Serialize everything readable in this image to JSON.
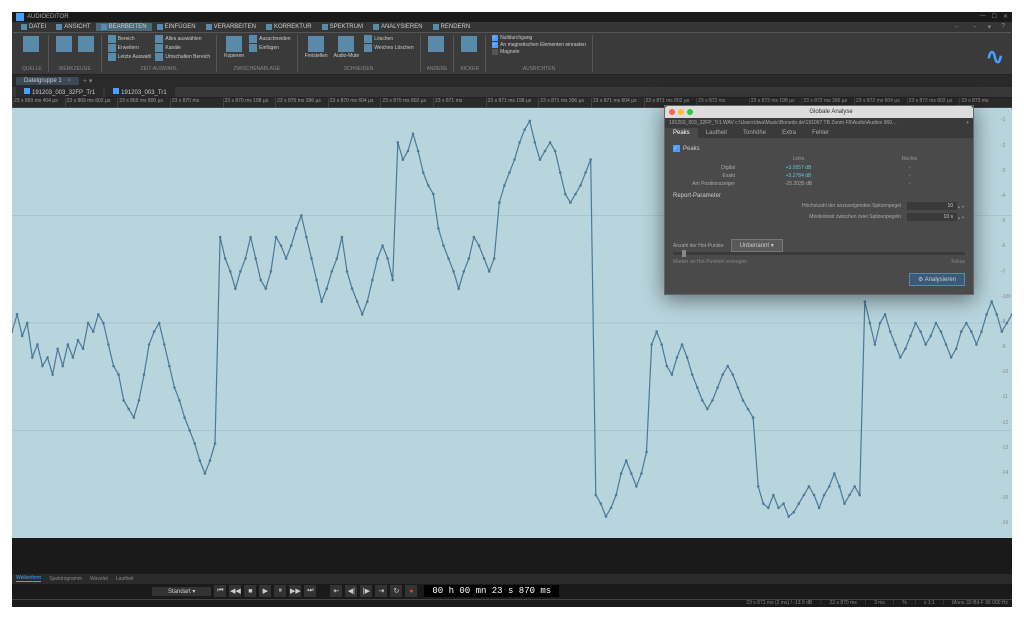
{
  "app_title": "AUDIOEDITOR",
  "menus": [
    "DATEI",
    "ANSICHT",
    "BEARBEITEN",
    "EINFÜGEN",
    "VERARBEITEN",
    "KORREKTUR",
    "SPEKTRUM",
    "ANALYSIEREN",
    "RENDERN"
  ],
  "active_menu_index": 2,
  "ribbon": {
    "groups": [
      {
        "name": "QUELLE",
        "big": [
          {
            "label": ""
          }
        ]
      },
      {
        "name": "WERKZEUGE",
        "big": [
          {
            "label": ""
          },
          {
            "label": ""
          }
        ]
      },
      {
        "name": "ZEIT-AUSWAHL",
        "rows": [
          "Bereich",
          "Erweitern",
          "Letzte Auswahl"
        ],
        "col2": [
          "Alles auswählen",
          "Kanäle",
          "Umschalten Bereich"
        ]
      },
      {
        "name": "ZWISCHENABLAGE",
        "big": [
          {
            "label": "Kopieren"
          }
        ],
        "rows": [
          "Ausschneiden",
          "Einfügen"
        ]
      },
      {
        "name": "SCHNEIDEN",
        "big": [
          {
            "label": "Freistellen"
          },
          {
            "label": "Audio-Mute"
          }
        ],
        "rows": [
          "Löschen",
          "Weiches Löschen"
        ]
      },
      {
        "name": "ANDERE",
        "big": [
          {
            "label": ""
          }
        ]
      },
      {
        "name": "KICKER",
        "big": [
          {
            "label": ""
          }
        ]
      },
      {
        "name": "AUSRICHTEN",
        "checks": [
          {
            "label": "Nulldurchgang",
            "on": true
          },
          {
            "label": "An magnetischen Elementen einrasten",
            "on": true
          },
          {
            "label": "Magnete",
            "on": false
          }
        ]
      }
    ]
  },
  "doc_tab": {
    "name": "Dateigruppe 1"
  },
  "file_tabs": [
    "191203_003_32FP_Tr1",
    "191203_003_Tr1"
  ],
  "time_ticks": [
    "23 s 869 ms 404 µs",
    "23 s 869 ms 602 µs",
    "23 s 869 ms 800 µs",
    "23 s 870 ms",
    "23 s 870 ms 198 µs",
    "23 s 870 ms 396 µs",
    "23 s 870 ms 604 µs",
    "23 s 870 ms 802 µs",
    "23 s 871 ms",
    "23 s 871 ms 198 µs",
    "23 s 871 ms 396 µs",
    "23 s 871 ms 604 µs",
    "23 s 871 ms 802 µs",
    "23 s 872 ms",
    "23 s 872 ms 198 µs",
    "23 s 872 ms 396 µs",
    "23 s 872 ms 604 µs",
    "23 s 872 ms 802 µs",
    "23 s 873 ms"
  ],
  "level_ticks": [
    "-1",
    "-2",
    "-3",
    "-4",
    "-5",
    "-6",
    "-7",
    "-100",
    "-8",
    "-9",
    "-10",
    "-11",
    "-12",
    "-13",
    "-14",
    "-15",
    "-16"
  ],
  "view_tabs": [
    "Wellenform",
    "Spektrogramm",
    "Wavelet",
    "Lautheit"
  ],
  "transport": {
    "select_label": "Standart",
    "time": "00 h 00 mn 23 s 870 ms"
  },
  "status": {
    "pos": "23 s 871 ms (2 ms) / -13.9 dB",
    "sel": "23 s 870 ms",
    "dur": "3 ms",
    "zoom": "x 1:1",
    "sr": "Mono 32-Bit-F 96 000 Hz"
  },
  "dialog": {
    "title": "Globale Analyse",
    "path": "191203_003_32FP_Tr1.WAV c:\\Users\\dwa\\Music\\Bonedo.de\\191007 TB Zoom F6\\Audio\\Audios 960…",
    "tabs": [
      "Peaks",
      "Lautheit",
      "Tonhöhe",
      "Extra",
      "Fehler"
    ],
    "active_tab": 0,
    "checkbox_label": "Peaks",
    "col_headers": [
      "Links",
      "Rechts"
    ],
    "rows": [
      {
        "k": "Digital",
        "v": "+3.0557 dB"
      },
      {
        "k": "Exakt",
        "v": "+3.2784 dB"
      },
      {
        "k": "Am Positionszeiger",
        "v": "-25.2035 dB",
        "dim": true
      }
    ],
    "section": "Report-Parameter",
    "params": [
      {
        "k": "Höchstzahl der anzuzeigenden Spitzenpegel",
        "v": "10"
      },
      {
        "k": "Mindestzeit zwischen zwei Spitzenpegeln",
        "v": "10 s"
      }
    ],
    "slider_label": "Anzahl der Hot-Punkte:",
    "button_rename": "Unbenannt",
    "button_analyze": "Analysieren",
    "foot_left": "Marker an Hot-Punkten erzeugen",
    "foot_right": "Fokus"
  },
  "waveform": {
    "bg": "#b8d4dd",
    "line": "#4a7a9a",
    "marker": "#4a7a9a",
    "grid": "#9ab8c2",
    "points": [
      0.52,
      0.48,
      0.53,
      0.5,
      0.58,
      0.55,
      0.6,
      0.58,
      0.62,
      0.56,
      0.6,
      0.55,
      0.58,
      0.54,
      0.56,
      0.5,
      0.52,
      0.48,
      0.5,
      0.55,
      0.6,
      0.62,
      0.68,
      0.7,
      0.72,
      0.68,
      0.62,
      0.55,
      0.52,
      0.5,
      0.55,
      0.6,
      0.65,
      0.68,
      0.72,
      0.75,
      0.78,
      0.82,
      0.85,
      0.82,
      0.78,
      0.3,
      0.35,
      0.38,
      0.42,
      0.38,
      0.35,
      0.3,
      0.35,
      0.4,
      0.42,
      0.38,
      0.3,
      0.32,
      0.35,
      0.32,
      0.28,
      0.25,
      0.3,
      0.35,
      0.4,
      0.45,
      0.42,
      0.38,
      0.35,
      0.3,
      0.38,
      0.42,
      0.45,
      0.48,
      0.45,
      0.4,
      0.35,
      0.32,
      0.35,
      0.4,
      0.08,
      0.12,
      0.1,
      0.06,
      0.1,
      0.15,
      0.18,
      0.2,
      0.28,
      0.32,
      0.35,
      0.38,
      0.42,
      0.38,
      0.35,
      0.3,
      0.32,
      0.35,
      0.38,
      0.35,
      0.22,
      0.18,
      0.15,
      0.12,
      0.08,
      0.05,
      0.03,
      0.08,
      0.12,
      0.1,
      0.08,
      0.1,
      0.15,
      0.2,
      0.22,
      0.2,
      0.18,
      0.15,
      0.12,
      0.9,
      0.92,
      0.95,
      0.93,
      0.9,
      0.85,
      0.82,
      0.85,
      0.88,
      0.85,
      0.8,
      0.55,
      0.52,
      0.55,
      0.6,
      0.62,
      0.58,
      0.55,
      0.58,
      0.62,
      0.65,
      0.68,
      0.7,
      0.68,
      0.65,
      0.62,
      0.6,
      0.62,
      0.65,
      0.68,
      0.7,
      0.72,
      0.88,
      0.92,
      0.93,
      0.9,
      0.93,
      0.92,
      0.95,
      0.94,
      0.92,
      0.9,
      0.88,
      0.9,
      0.93,
      0.9,
      0.88,
      0.85,
      0.88,
      0.92,
      0.9,
      0.88,
      0.9,
      0.45,
      0.5,
      0.55,
      0.5,
      0.48,
      0.52,
      0.55,
      0.58,
      0.56,
      0.53,
      0.5,
      0.52,
      0.55,
      0.53,
      0.5,
      0.52,
      0.55,
      0.58,
      0.56,
      0.52,
      0.5,
      0.52,
      0.55,
      0.52,
      0.48,
      0.45,
      0.48,
      0.52,
      0.5,
      0.48
    ]
  }
}
